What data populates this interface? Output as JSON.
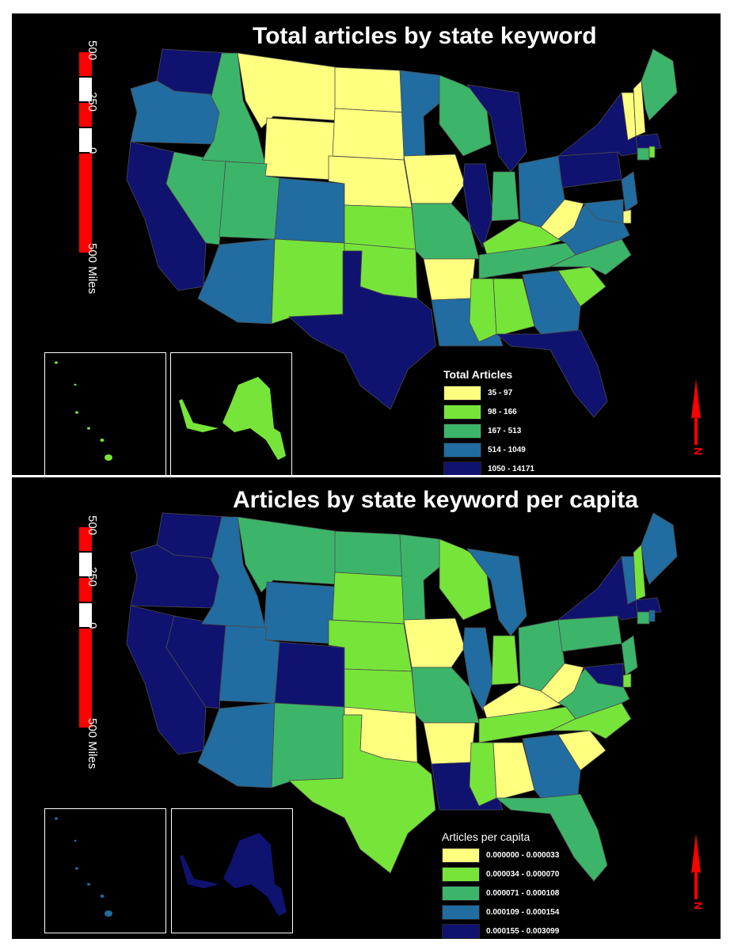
{
  "colors": {
    "class1": "#ffff7f",
    "class2": "#77e43a",
    "class3": "#3cb56a",
    "class4": "#216ca0",
    "class5": "#101270",
    "scalebar": "#ff0000",
    "north_arrow": "#ff0000"
  },
  "scale": {
    "label_500": "500",
    "label_250": "250",
    "label_0": "0",
    "label_miles": "500 Miles"
  },
  "north_label": "N",
  "maps": [
    {
      "title": "Total articles by state keyword",
      "legend_title": "Total Articles",
      "legend": [
        "35 - 97",
        "98 - 166",
        "167 - 513",
        "514 - 1049",
        "1050 - 14171"
      ],
      "states": {
        "WA": 5,
        "OR": 4,
        "CA": 5,
        "NV": 3,
        "ID": 3,
        "MT": 1,
        "WY": 1,
        "UT": 3,
        "CO": 4,
        "AZ": 4,
        "NM": 2,
        "ND": 1,
        "SD": 1,
        "NE": 1,
        "KS": 2,
        "OK": 2,
        "TX": 5,
        "MN": 4,
        "IA": 1,
        "MO": 3,
        "AR": 1,
        "LA": 4,
        "WI": 3,
        "IL": 5,
        "MI": 5,
        "IN": 3,
        "OH": 4,
        "KY": 2,
        "TN": 3,
        "MS": 2,
        "AL": 2,
        "GA": 4,
        "FL": 5,
        "SC": 2,
        "NC": 3,
        "VA": 4,
        "WV": 1,
        "PA": 5,
        "NY": 5,
        "VT": 1,
        "NH": 1,
        "ME": 3,
        "MA": 5,
        "CT": 3,
        "RI": 2,
        "NJ": 4,
        "DE": 1,
        "MD": 4,
        "AK": 2,
        "HI": 2
      }
    },
    {
      "title": "Articles by state keyword per capita",
      "legend_title": "Articles per capita",
      "legend": [
        "0.000000 - 0.000033",
        "0.000034 - 0.000070",
        "0.000071 - 0.000108",
        "0.000109 - 0.000154",
        "0.000155 - 0.003099"
      ],
      "states": {
        "WA": 5,
        "OR": 5,
        "CA": 5,
        "NV": 5,
        "ID": 4,
        "MT": 3,
        "WY": 4,
        "UT": 4,
        "CO": 5,
        "AZ": 4,
        "NM": 3,
        "ND": 3,
        "SD": 2,
        "NE": 2,
        "KS": 2,
        "OK": 1,
        "TX": 2,
        "MN": 3,
        "IA": 1,
        "MO": 3,
        "AR": 1,
        "LA": 5,
        "WI": 2,
        "IL": 4,
        "MI": 4,
        "IN": 2,
        "OH": 3,
        "KY": 1,
        "TN": 2,
        "MS": 2,
        "AL": 1,
        "GA": 4,
        "FL": 3,
        "SC": 1,
        "NC": 2,
        "VA": 3,
        "WV": 1,
        "PA": 3,
        "NY": 5,
        "VT": 4,
        "NH": 2,
        "ME": 4,
        "MA": 5,
        "CT": 3,
        "RI": 4,
        "NJ": 3,
        "DE": 2,
        "MD": 5,
        "AK": 5,
        "HI": 4
      }
    }
  ]
}
